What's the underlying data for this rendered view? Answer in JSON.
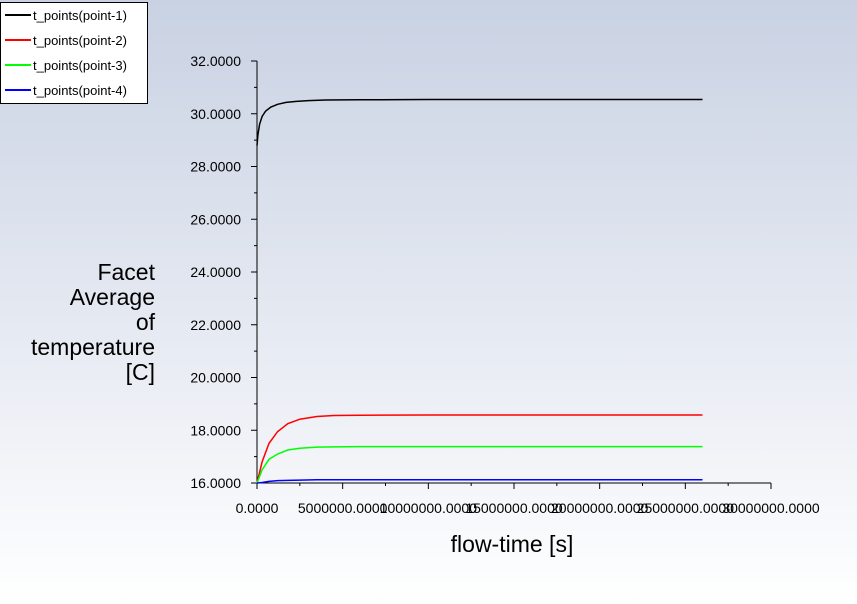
{
  "chart_data": {
    "type": "line",
    "title": "",
    "xlabel": "flow-time [s]",
    "ylabel_lines": [
      "Facet",
      "Average",
      "of",
      "temperature",
      "[C]"
    ],
    "xlim": [
      0,
      30000000
    ],
    "ylim": [
      16,
      32
    ],
    "x_ticks": [
      {
        "value": 0,
        "label": "0.0000"
      },
      {
        "value": 5000000,
        "label": "5000000.0000"
      },
      {
        "value": 10000000,
        "label": "10000000.0000"
      },
      {
        "value": 15000000,
        "label": "15000000.0000"
      },
      {
        "value": 20000000,
        "label": "20000000.0000"
      },
      {
        "value": 25000000,
        "label": "25000000.0000"
      },
      {
        "value": 30000000,
        "label": "30000000.0000"
      }
    ],
    "y_ticks": [
      {
        "value": 16,
        "label": "16.0000"
      },
      {
        "value": 18,
        "label": "18.0000"
      },
      {
        "value": 20,
        "label": "20.0000"
      },
      {
        "value": 22,
        "label": "22.0000"
      },
      {
        "value": 24,
        "label": "24.0000"
      },
      {
        "value": 26,
        "label": "26.0000"
      },
      {
        "value": 28,
        "label": "28.0000"
      },
      {
        "value": 30,
        "label": "30.0000"
      },
      {
        "value": 32,
        "label": "32.0000"
      }
    ],
    "grid": false,
    "legend_position": "top-left",
    "series": [
      {
        "name": "t_points(point-1)",
        "color": "#000000",
        "x": [
          0,
          50000,
          150000,
          300000,
          500000,
          800000,
          1200000,
          1700000,
          2300000,
          3000000,
          4000000,
          6000000,
          10000000,
          15000000,
          20000000,
          26000000
        ],
        "y": [
          28.8,
          29.2,
          29.6,
          29.9,
          30.1,
          30.25,
          30.36,
          30.43,
          30.47,
          30.5,
          30.52,
          30.53,
          30.54,
          30.54,
          30.54,
          30.54
        ]
      },
      {
        "name": "t_points(point-2)",
        "color": "#ff0000",
        "x": [
          0,
          300000,
          700000,
          1200000,
          1800000,
          2500000,
          3500000,
          4500000,
          6000000,
          10000000,
          15000000,
          20000000,
          26000000
        ],
        "y": [
          16.0,
          16.8,
          17.5,
          17.95,
          18.25,
          18.42,
          18.52,
          18.56,
          18.57,
          18.58,
          18.58,
          18.58,
          18.58
        ]
      },
      {
        "name": "t_points(point-3)",
        "color": "#00ff00",
        "x": [
          0,
          300000,
          700000,
          1200000,
          1800000,
          2500000,
          3500000,
          4500000,
          6000000,
          10000000,
          15000000,
          20000000,
          26000000
        ],
        "y": [
          16.0,
          16.5,
          16.9,
          17.1,
          17.25,
          17.32,
          17.36,
          17.37,
          17.38,
          17.38,
          17.38,
          17.38,
          17.38
        ]
      },
      {
        "name": "t_points(point-4)",
        "color": "#0000ff",
        "x": [
          0,
          300000,
          700000,
          1200000,
          1800000,
          2500000,
          3500000,
          4500000,
          6000000,
          10000000,
          15000000,
          20000000,
          26000000
        ],
        "y": [
          16.0,
          16.02,
          16.06,
          16.09,
          16.1,
          16.11,
          16.12,
          16.12,
          16.12,
          16.12,
          16.12,
          16.12,
          16.12
        ]
      }
    ]
  }
}
